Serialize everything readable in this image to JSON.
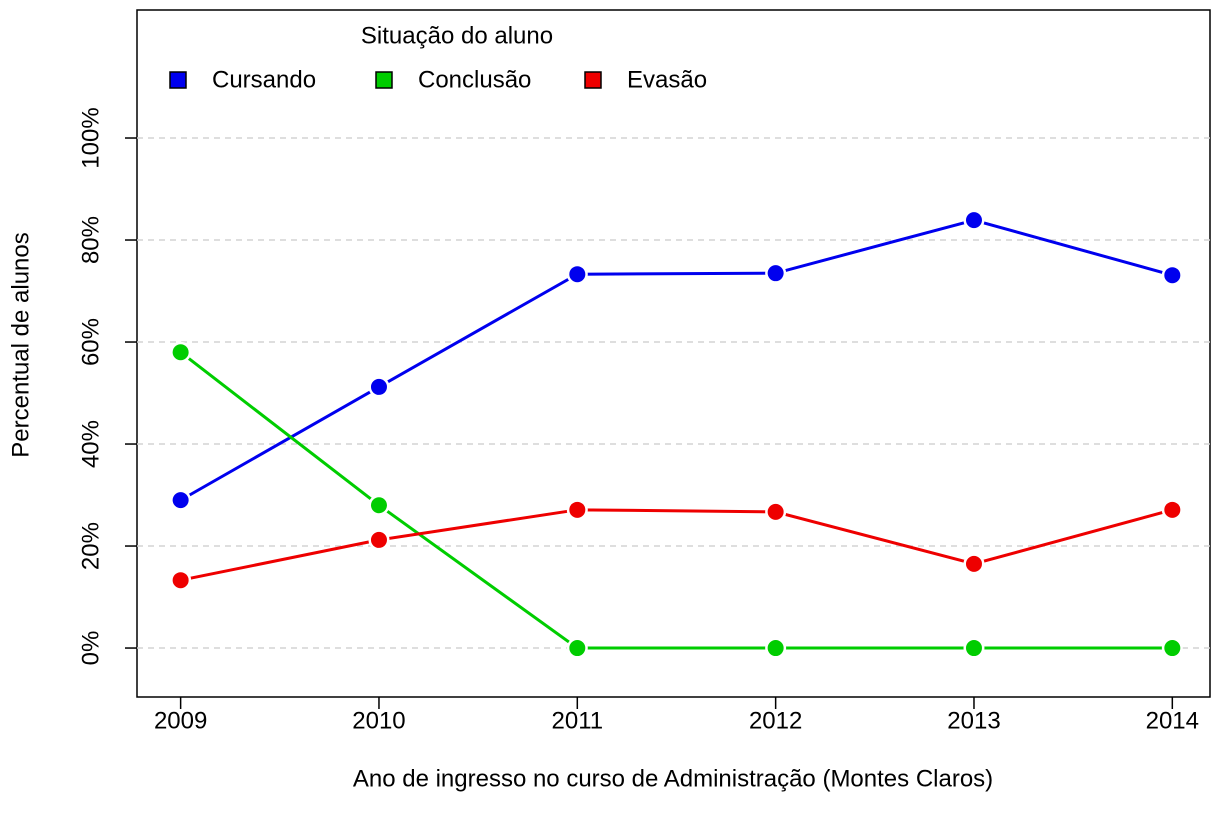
{
  "chart_data": {
    "type": "line",
    "legend_title": "Situação do aluno",
    "x_label": "Ano de ingresso no curso de Administração (Montes Claros)",
    "y_label": "Percentual de alunos",
    "x": [
      2009,
      2010,
      2011,
      2012,
      2013,
      2014
    ],
    "series": [
      {
        "name": "Cursando",
        "color": "#0000ee",
        "values": [
          29.0,
          51.2,
          73.3,
          73.5,
          83.9,
          73.1
        ]
      },
      {
        "name": "Conclusão",
        "color": "#00cd00",
        "values": [
          58.0,
          28.0,
          0,
          0,
          0,
          0
        ]
      },
      {
        "name": "Evasão",
        "color": "#ee0000",
        "values": [
          13.3,
          21.2,
          27.1,
          26.7,
          16.5,
          27.1
        ]
      }
    ],
    "xlim": [
      2008.78,
      2014.19
    ],
    "ylim": [
      -9.6,
      125.1
    ],
    "xticks": [
      2009,
      2010,
      2011,
      2012,
      2013,
      2014
    ],
    "yticks": [
      {
        "value": 0,
        "label": "0%"
      },
      {
        "value": 20,
        "label": "20%"
      },
      {
        "value": 40,
        "label": "40%"
      },
      {
        "value": 60,
        "label": "60%"
      },
      {
        "value": 80,
        "label": "80%"
      },
      {
        "value": 100,
        "label": "100%"
      }
    ],
    "grid": true
  }
}
